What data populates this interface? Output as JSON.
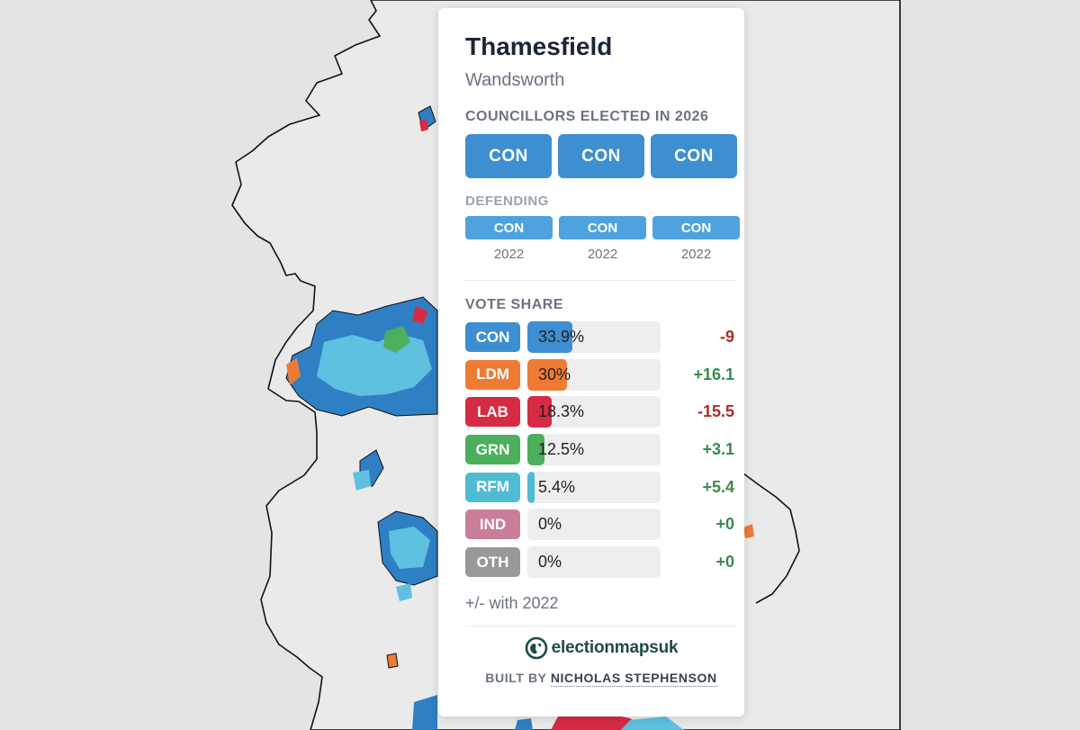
{
  "ward": {
    "name": "Thamesfield",
    "council": "Wandsworth"
  },
  "elected": {
    "title": "COUNCILLORS ELECTED IN 2026",
    "seats": [
      "CON",
      "CON",
      "CON"
    ],
    "color": "#3d8fd1"
  },
  "defending": {
    "title": "DEFENDING",
    "seats": [
      {
        "party": "CON",
        "year": "2022"
      },
      {
        "party": "CON",
        "year": "2022"
      },
      {
        "party": "CON",
        "year": "2022"
      }
    ],
    "color": "#4ea3df"
  },
  "vote_share": {
    "title": "VOTE SHARE",
    "rows": [
      {
        "party": "CON",
        "share": 33.9,
        "label": "33.9%",
        "change": "-9",
        "color": "#3d8fd1",
        "change_color": "#b02a2a"
      },
      {
        "party": "LDM",
        "share": 30,
        "label": "30%",
        "change": "+16.1",
        "color": "#ee7b34",
        "change_color": "#3a8a4f"
      },
      {
        "party": "LAB",
        "share": 18.3,
        "label": "18.3%",
        "change": "-15.5",
        "color": "#d62b44",
        "change_color": "#b02a2a"
      },
      {
        "party": "GRN",
        "share": 12.5,
        "label": "12.5%",
        "change": "+3.1",
        "color": "#4caf5d",
        "change_color": "#3a8a4f"
      },
      {
        "party": "RFM",
        "share": 5.4,
        "label": "5.4%",
        "change": "+5.4",
        "color": "#4fbcd3",
        "change_color": "#3a8a4f"
      },
      {
        "party": "IND",
        "share": 0,
        "label": "0%",
        "change": "+0",
        "color": "#c97f98",
        "change_color": "#3a8a4f"
      },
      {
        "party": "OTH",
        "share": 0,
        "label": "0%",
        "change": "+0",
        "color": "#999999",
        "change_color": "#3a8a4f"
      }
    ],
    "note": "+/- with 2022"
  },
  "footer": {
    "brand": "electionmapsuk",
    "built_by": "BUILT BY",
    "author": "NICHOLAS STEPHENSON"
  }
}
